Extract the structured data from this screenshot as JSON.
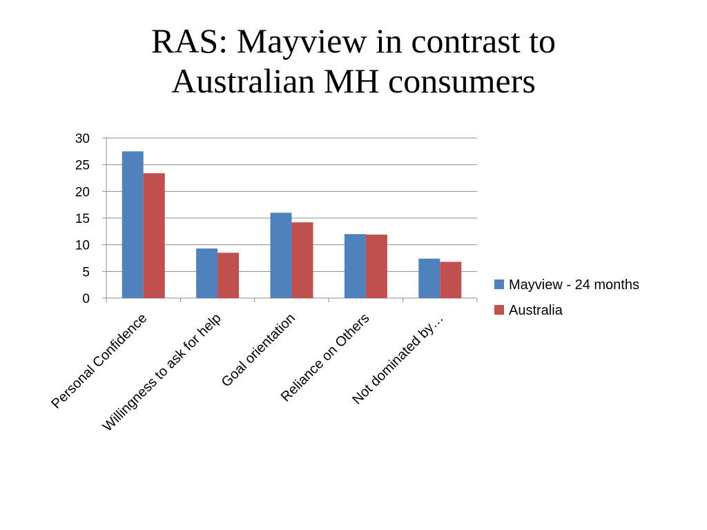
{
  "slide": {
    "title_line1": "RAS: Mayview in contrast to",
    "title_line2": "Australian MH consumers"
  },
  "chart_data": {
    "type": "bar",
    "title": "",
    "xlabel": "",
    "ylabel": "",
    "ylim": [
      0,
      30
    ],
    "yticks": [
      0,
      5,
      10,
      15,
      20,
      25,
      30
    ],
    "grid": true,
    "legend_position": "right",
    "categories": [
      "Personal Confidence",
      "Willingness to ask for help",
      "Goal orientation",
      "Reliance on Others",
      "Not dominated by…"
    ],
    "series": [
      {
        "name": "Mayview - 24 months",
        "color": "#4F81BD",
        "values": [
          27.5,
          9.3,
          16.0,
          12.0,
          7.4
        ]
      },
      {
        "name": "Australia",
        "color": "#C0504D",
        "values": [
          23.4,
          8.5,
          14.2,
          11.9,
          6.8
        ]
      }
    ]
  }
}
